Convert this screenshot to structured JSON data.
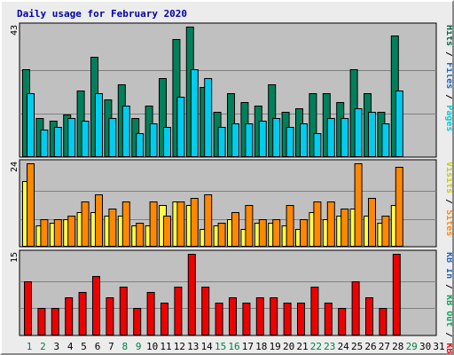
{
  "chart_data": {
    "type": "bar",
    "title": "Daily usage for February 2020",
    "days": [
      "1",
      "2",
      "3",
      "4",
      "5",
      "6",
      "7",
      "8",
      "9",
      "10",
      "11",
      "12",
      "13",
      "14",
      "15",
      "16",
      "17",
      "18",
      "19",
      "20",
      "21",
      "22",
      "23",
      "24",
      "25",
      "26",
      "27",
      "28",
      "29",
      "30",
      "31"
    ],
    "weekend_days": [
      1,
      2,
      8,
      9,
      15,
      16,
      22,
      23,
      29
    ],
    "panels": [
      {
        "max_label": "43",
        "ymax": 43,
        "legend": [
          {
            "text": "Hits",
            "color": "#006a48"
          },
          {
            "text": "Files",
            "color": "#1a66cc"
          },
          {
            "text": "Pages",
            "color": "#00ccdd"
          }
        ],
        "series": [
          {
            "name": "Hits",
            "color": "#00805a",
            "values": [
              29,
              13,
              12,
              14,
              22,
              33,
              19,
              24,
              13,
              17,
              26,
              39,
              43,
              23,
              15,
              21,
              18,
              17,
              24,
              15,
              16,
              21,
              21,
              18,
              29,
              21,
              15,
              40,
              0,
              0,
              0
            ]
          },
          {
            "name": "Files",
            "color": "#00ccee",
            "values": [
              21,
              9,
              10,
              13,
              12,
              21,
              13,
              17,
              8,
              11,
              10,
              20,
              29,
              26,
              10,
              11,
              11,
              12,
              13,
              10,
              11,
              8,
              13,
              13,
              16,
              15,
              11,
              22,
              0,
              0,
              0
            ]
          }
        ]
      },
      {
        "max_label": "24",
        "ymax": 24,
        "legend": [
          {
            "text": "Visits",
            "color": "#cccc00"
          },
          {
            "text": "Sites",
            "color": "#ff8800"
          }
        ],
        "series": [
          {
            "name": "Visits",
            "color": "#ffff44",
            "values": [
              19,
              6,
              7,
              8,
              10,
              10,
              9,
              9,
              6,
              6,
              12,
              13,
              12,
              5,
              6,
              8,
              5,
              7,
              7,
              6,
              5,
              10,
              8,
              9,
              11,
              9,
              7,
              12,
              0,
              0,
              0
            ]
          },
          {
            "name": "Sites",
            "color": "#ff8800",
            "values": [
              24,
              8,
              8,
              9,
              13,
              15,
              11,
              13,
              7,
              13,
              9,
              13,
              14,
              15,
              7,
              10,
              12,
              8,
              8,
              12,
              8,
              13,
              13,
              11,
              24,
              14,
              9,
              23,
              0,
              0,
              0
            ]
          }
        ]
      },
      {
        "max_label": "15",
        "ymax": 15,
        "legend": [
          {
            "text": "KB In",
            "color": "#1a66cc"
          },
          {
            "text": "KB Out",
            "color": "#00aa55"
          },
          {
            "text": "KB F",
            "color": "#ff0000"
          }
        ],
        "series": [
          {
            "name": "KB F",
            "color": "#ee0000",
            "values": [
              10,
              5,
              5,
              7,
              8,
              11,
              7,
              9,
              5,
              8,
              6,
              9,
              15,
              9,
              6,
              7,
              6,
              7,
              7,
              6,
              6,
              9,
              6,
              5,
              10,
              7,
              5,
              15,
              0,
              0,
              0
            ]
          }
        ]
      }
    ]
  }
}
